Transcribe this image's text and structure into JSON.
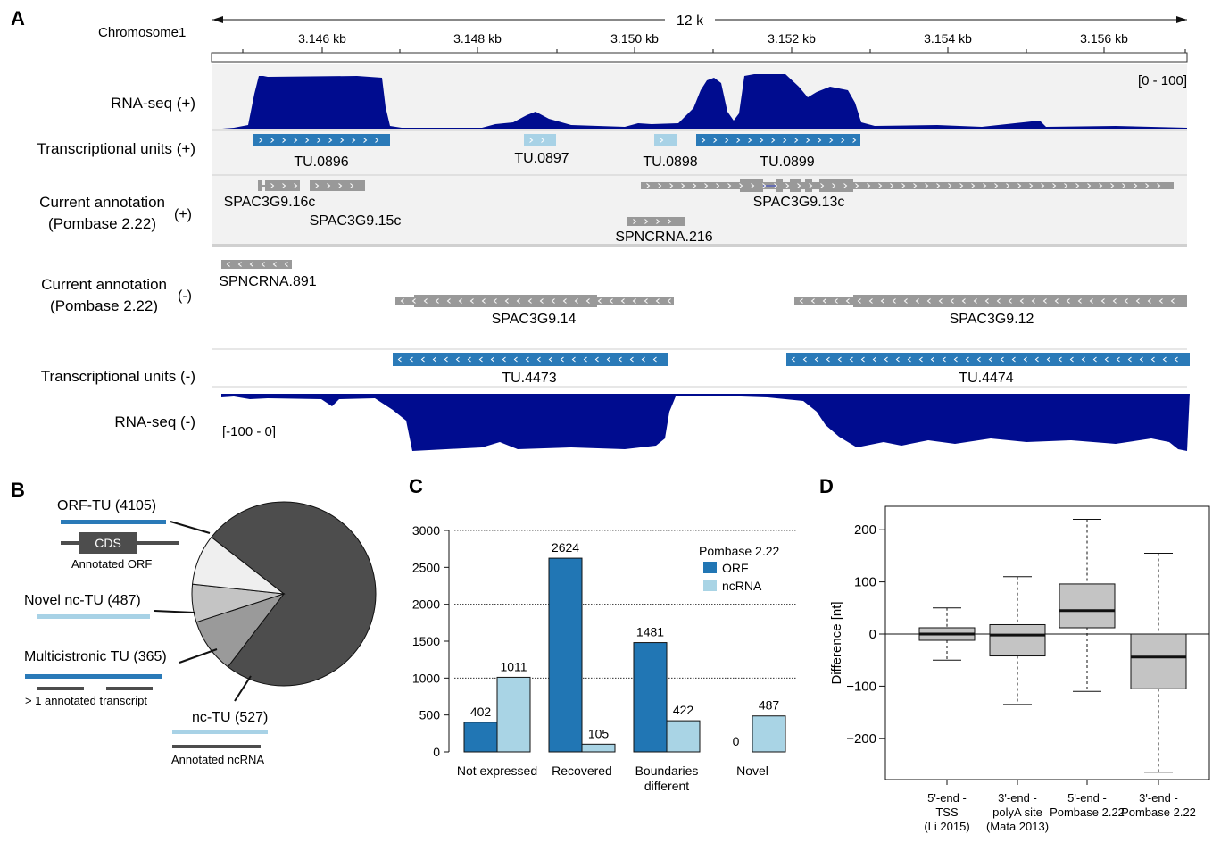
{
  "panel_labels": [
    "A",
    "B",
    "C",
    "D"
  ],
  "panel_a": {
    "chrom": "Chromosome1",
    "span_label": "12 k",
    "ticks": [
      "3.146 kb",
      "3.148 kb",
      "3.150 kb",
      "3.152 kb",
      "3.154 kb",
      "3.156 kb"
    ],
    "range_plus": "[0 - 100]",
    "range_minus": "[-100 - 0]",
    "tracks": {
      "rna_plus": "RNA-seq (+)",
      "tu_plus": "Transcriptional units (+)",
      "ann_plus_1": "Current annotation",
      "ann_plus_2": "(Pombase 2.22)",
      "plus_sign": "(+)",
      "ann_minus_1": "Current annotation",
      "ann_minus_2": "(Pombase 2.22)",
      "minus_sign": "(-)",
      "tu_minus": "Transcriptional units (-)",
      "rna_minus": "RNA-seq (-)"
    },
    "features": {
      "tu_0896": "TU.0896",
      "tu_0897": "TU.0897",
      "tu_0898": "TU.0898",
      "tu_0899": "TU.0899",
      "g16c": "SPAC3G9.16c",
      "g15c": "SPAC3G9.15c",
      "g13c": "SPAC3G9.13c",
      "nc216": "SPNCRNA.216",
      "nc891": "SPNCRNA.891",
      "g14": "SPAC3G9.14",
      "g12": "SPAC3G9.12",
      "tu_4473": "TU.4473",
      "tu_4474": "TU.4474"
    },
    "colors": {
      "coverage": "#000c8f",
      "tu_orf": "#2a7ab8",
      "tu_nc": "#a8d2e6",
      "annotation": "#999999"
    }
  },
  "panel_b": {
    "legend": {
      "orf_tu": "ORF-TU (4105)",
      "cds": "CDS",
      "annotated_orf": "Annotated ORF",
      "novel_nc": "Novel nc-TU (487)",
      "multi": "Multicistronic TU (365)",
      "multi_note": "> 1 annotated transcript",
      "nc_tu": "nc-TU (527)",
      "annotated_ncrna": "Annotated ncRNA"
    },
    "chart_data": {
      "type": "pie",
      "labels": [
        "ORF-TU",
        "nc-TU",
        "Multicistronic TU",
        "Novel nc-TU"
      ],
      "values": [
        4105,
        527,
        365,
        487
      ],
      "colors": [
        "#4d4d4d",
        "#9a9a9a",
        "#c4c4c4",
        "#efefef"
      ]
    }
  },
  "panel_c": {
    "chart_data": {
      "type": "bar",
      "categories": [
        "Not expressed",
        "Recovered",
        "Boundaries different",
        "Novel"
      ],
      "category_lines": [
        [
          "Not expressed"
        ],
        [
          "Recovered"
        ],
        [
          "Boundaries",
          "different"
        ],
        [
          "Novel"
        ]
      ],
      "series": [
        {
          "name": "ORF",
          "values": [
            402,
            2624,
            1481,
            0
          ],
          "color": "#2176b4"
        },
        {
          "name": "ncRNA",
          "values": [
            1011,
            105,
            422,
            487
          ],
          "color": "#a9d4e5"
        }
      ],
      "ylim": [
        0,
        3000
      ],
      "yticks": [
        0,
        500,
        1000,
        1500,
        2000,
        2500,
        3000
      ],
      "grid_lines": [
        1000,
        2000,
        3000
      ],
      "legend_title": "Pombase 2.22",
      "legend_position": "top-right"
    }
  },
  "panel_d": {
    "chart_data": {
      "type": "box",
      "ylabel": "Difference [nt]",
      "ylim": [
        -280,
        240
      ],
      "yticks": [
        -200,
        -100,
        0,
        100,
        200
      ],
      "categories": [
        [
          "5'-end -",
          "TSS",
          "(Li 2015)"
        ],
        [
          "3'-end -",
          "polyA site",
          "(Mata 2013)"
        ],
        [
          "5'-end -",
          "Pombase 2.22"
        ],
        [
          "3'-end -",
          "Pombase 2.22"
        ]
      ],
      "boxes": [
        {
          "whisker_low": -50,
          "q1": -12,
          "median": 0,
          "q3": 12,
          "whisker_high": 50
        },
        {
          "whisker_low": -135,
          "q1": -42,
          "median": -2,
          "q3": 18,
          "whisker_high": 110
        },
        {
          "whisker_low": -110,
          "q1": 12,
          "median": 45,
          "q3": 96,
          "whisker_high": 220
        },
        {
          "whisker_low": -265,
          "q1": -105,
          "median": -44,
          "q3": 0,
          "whisker_high": 155
        }
      ],
      "box_color": "#c4c4c4"
    }
  }
}
